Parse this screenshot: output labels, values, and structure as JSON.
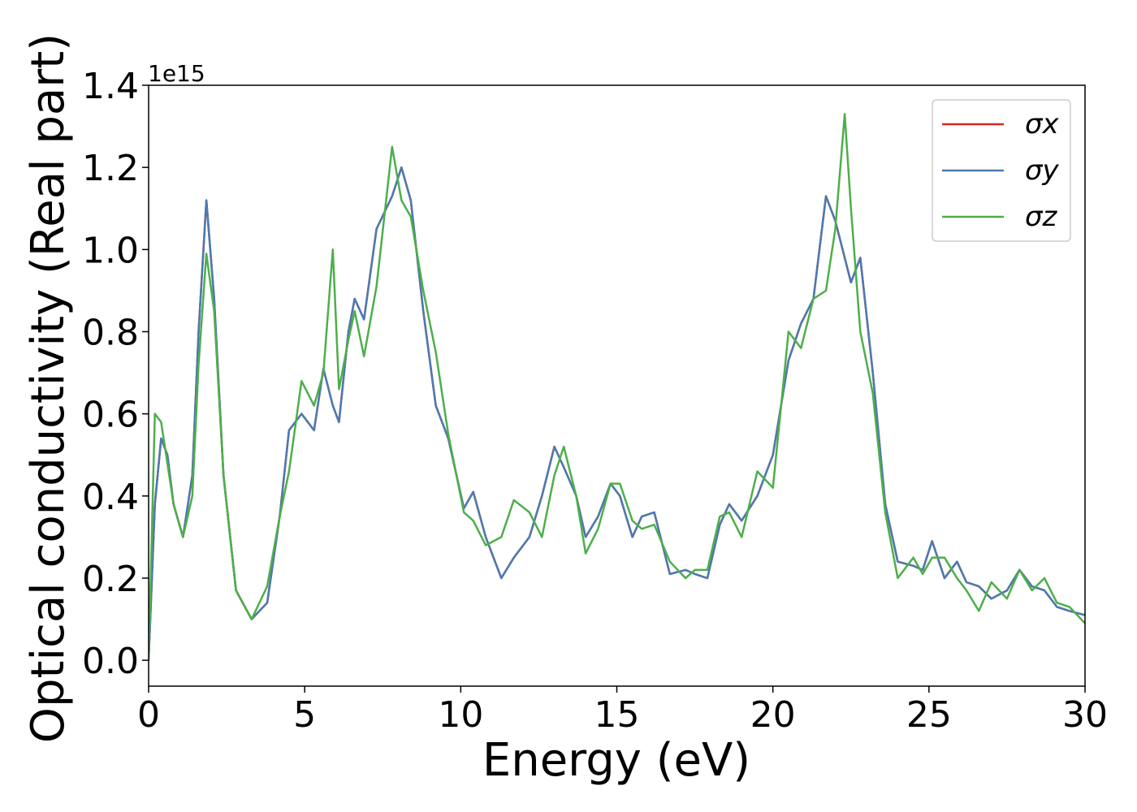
{
  "chart_data": {
    "type": "line",
    "xlabel": "Energy (eV)",
    "ylabel": "Optical conductivity (Real part)",
    "offset_label": "1e15",
    "x": [
      0,
      0.2,
      0.4,
      0.6,
      0.8,
      1.1,
      1.4,
      1.6,
      1.85,
      2.1,
      2.4,
      2.8,
      3.3,
      3.8,
      4.2,
      4.5,
      4.9,
      5.3,
      5.6,
      5.9,
      6.1,
      6.4,
      6.6,
      6.9,
      7.3,
      7.8,
      8.1,
      8.4,
      8.8,
      9.2,
      9.6,
      10.1,
      10.4,
      10.8,
      11.3,
      11.7,
      12.2,
      12.6,
      13.0,
      13.3,
      13.7,
      14.0,
      14.4,
      14.8,
      15.1,
      15.5,
      15.8,
      16.2,
      16.7,
      17.2,
      17.5,
      17.9,
      18.3,
      18.6,
      19.0,
      19.5,
      20.0,
      20.5,
      20.9,
      21.3,
      21.7,
      22.0,
      22.3,
      22.5,
      22.8,
      23.2,
      23.6,
      24.0,
      24.5,
      24.8,
      25.1,
      25.5,
      25.9,
      26.2,
      26.6,
      27.0,
      27.5,
      27.9,
      28.3,
      28.7,
      29.1,
      29.5,
      30.0
    ],
    "series": [
      {
        "name": "σx",
        "color": "#d62728",
        "values": [
          0,
          0.38,
          0.54,
          0.5,
          0.38,
          0.3,
          0.45,
          0.8,
          1.12,
          0.88,
          0.45,
          0.17,
          0.1,
          0.14,
          0.35,
          0.56,
          0.6,
          0.56,
          0.71,
          0.62,
          0.58,
          0.8,
          0.88,
          0.83,
          1.05,
          1.13,
          1.2,
          1.12,
          0.85,
          0.62,
          0.54,
          0.37,
          0.41,
          0.3,
          0.2,
          0.25,
          0.3,
          0.4,
          0.52,
          0.47,
          0.4,
          0.3,
          0.35,
          0.43,
          0.4,
          0.3,
          0.35,
          0.36,
          0.21,
          0.22,
          0.21,
          0.2,
          0.33,
          0.38,
          0.34,
          0.4,
          0.5,
          0.73,
          0.82,
          0.88,
          1.13,
          1.07,
          0.98,
          0.92,
          0.98,
          0.7,
          0.38,
          0.24,
          0.23,
          0.22,
          0.29,
          0.2,
          0.24,
          0.19,
          0.18,
          0.15,
          0.17,
          0.22,
          0.18,
          0.17,
          0.13,
          0.12,
          0.11
        ]
      },
      {
        "name": "σy",
        "color": "#4a7bb0",
        "values": [
          0,
          0.38,
          0.54,
          0.5,
          0.38,
          0.3,
          0.45,
          0.8,
          1.12,
          0.88,
          0.45,
          0.17,
          0.1,
          0.14,
          0.35,
          0.56,
          0.6,
          0.56,
          0.71,
          0.62,
          0.58,
          0.8,
          0.88,
          0.83,
          1.05,
          1.13,
          1.2,
          1.12,
          0.85,
          0.62,
          0.54,
          0.37,
          0.41,
          0.3,
          0.2,
          0.25,
          0.3,
          0.4,
          0.52,
          0.47,
          0.4,
          0.3,
          0.35,
          0.43,
          0.4,
          0.3,
          0.35,
          0.36,
          0.21,
          0.22,
          0.21,
          0.2,
          0.33,
          0.38,
          0.34,
          0.4,
          0.5,
          0.73,
          0.82,
          0.88,
          1.13,
          1.07,
          0.98,
          0.92,
          0.98,
          0.7,
          0.38,
          0.24,
          0.23,
          0.22,
          0.29,
          0.2,
          0.24,
          0.19,
          0.18,
          0.15,
          0.17,
          0.22,
          0.18,
          0.17,
          0.13,
          0.12,
          0.11
        ]
      },
      {
        "name": "σz",
        "color": "#4daf4a",
        "values": [
          0,
          0.6,
          0.58,
          0.48,
          0.38,
          0.3,
          0.4,
          0.72,
          0.99,
          0.85,
          0.45,
          0.17,
          0.1,
          0.18,
          0.35,
          0.46,
          0.68,
          0.62,
          0.7,
          1.0,
          0.66,
          0.78,
          0.85,
          0.74,
          0.91,
          1.25,
          1.12,
          1.08,
          0.9,
          0.75,
          0.55,
          0.36,
          0.34,
          0.28,
          0.3,
          0.39,
          0.36,
          0.3,
          0.45,
          0.52,
          0.4,
          0.26,
          0.32,
          0.43,
          0.43,
          0.34,
          0.32,
          0.33,
          0.24,
          0.2,
          0.22,
          0.22,
          0.35,
          0.36,
          0.3,
          0.46,
          0.42,
          0.8,
          0.76,
          0.88,
          0.9,
          1.05,
          1.33,
          1.1,
          0.8,
          0.65,
          0.36,
          0.2,
          0.25,
          0.21,
          0.25,
          0.25,
          0.2,
          0.17,
          0.12,
          0.19,
          0.15,
          0.22,
          0.17,
          0.2,
          0.14,
          0.13,
          0.09
        ]
      }
    ],
    "xlim": [
      0,
      30
    ],
    "xticks": [
      0,
      5,
      10,
      15,
      20,
      25,
      30
    ],
    "ylim": [
      -0.063,
      1.4
    ],
    "yticks": [
      {
        "value": 0,
        "label": "0.0"
      },
      0.2,
      0.4,
      0.6,
      0.8,
      {
        "value": 1,
        "label": "1.0"
      },
      1.2,
      1.4
    ],
    "legend": "upper right",
    "grid": false
  }
}
